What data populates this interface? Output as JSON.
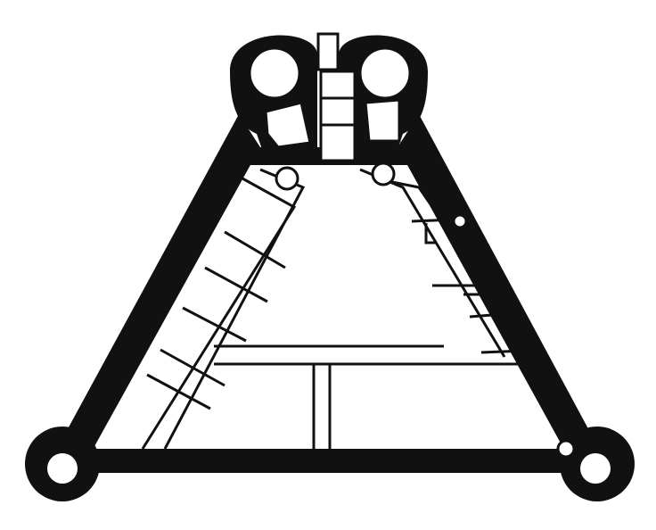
{
  "figure": {
    "ink_color": "#111111",
    "paper_color": "#ffffff"
  },
  "towers": [
    "gate-tower-left",
    "gate-tower-right",
    "corner-tower-bottom-left",
    "corner-tower-bottom-right"
  ]
}
